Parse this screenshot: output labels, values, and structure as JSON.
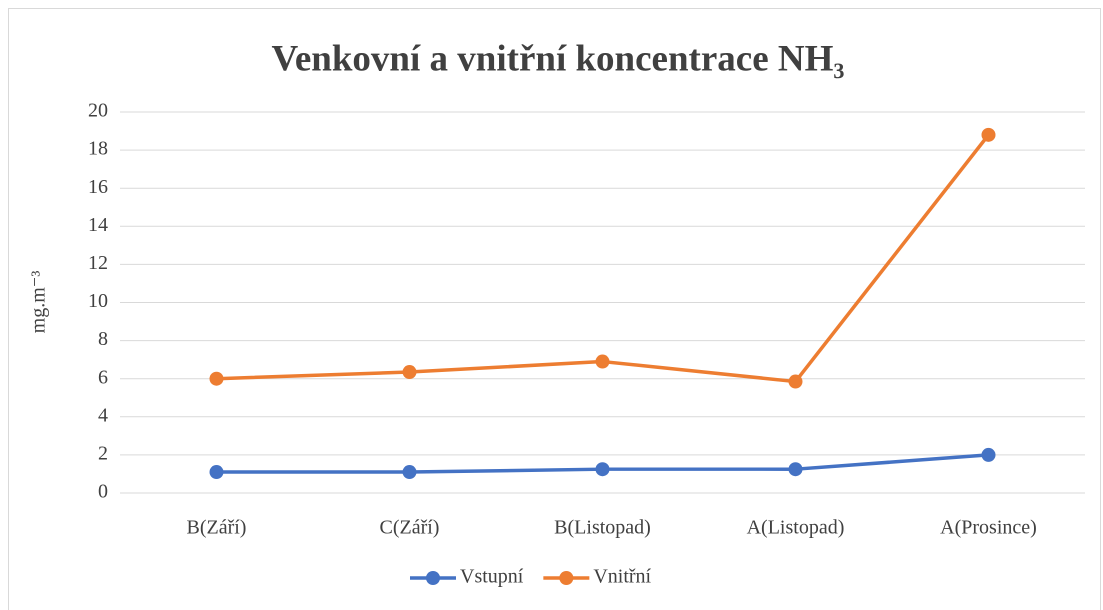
{
  "chart_data": {
    "type": "line",
    "title": "Venkovní a vnitřní koncentrace NH₃",
    "y_label": "mg.m⁻³",
    "categories": [
      "B(Září)",
      "C(Září)",
      "B(Listopad)",
      "A(Listopad)",
      "A(Prosince)"
    ],
    "series": [
      {
        "name": "Vstupní",
        "color": "#4472c4",
        "values": [
          1.1,
          1.1,
          1.25,
          1.25,
          2.0
        ]
      },
      {
        "name": "Vnitřní",
        "color": "#ed7d31",
        "values": [
          6.0,
          6.35,
          6.9,
          5.85,
          18.8
        ]
      }
    ],
    "ylim": [
      0,
      20
    ],
    "yticks": [
      0,
      2,
      4,
      6,
      8,
      10,
      12,
      14,
      16,
      18,
      20
    ],
    "grid": true,
    "legend": "bottom"
  }
}
